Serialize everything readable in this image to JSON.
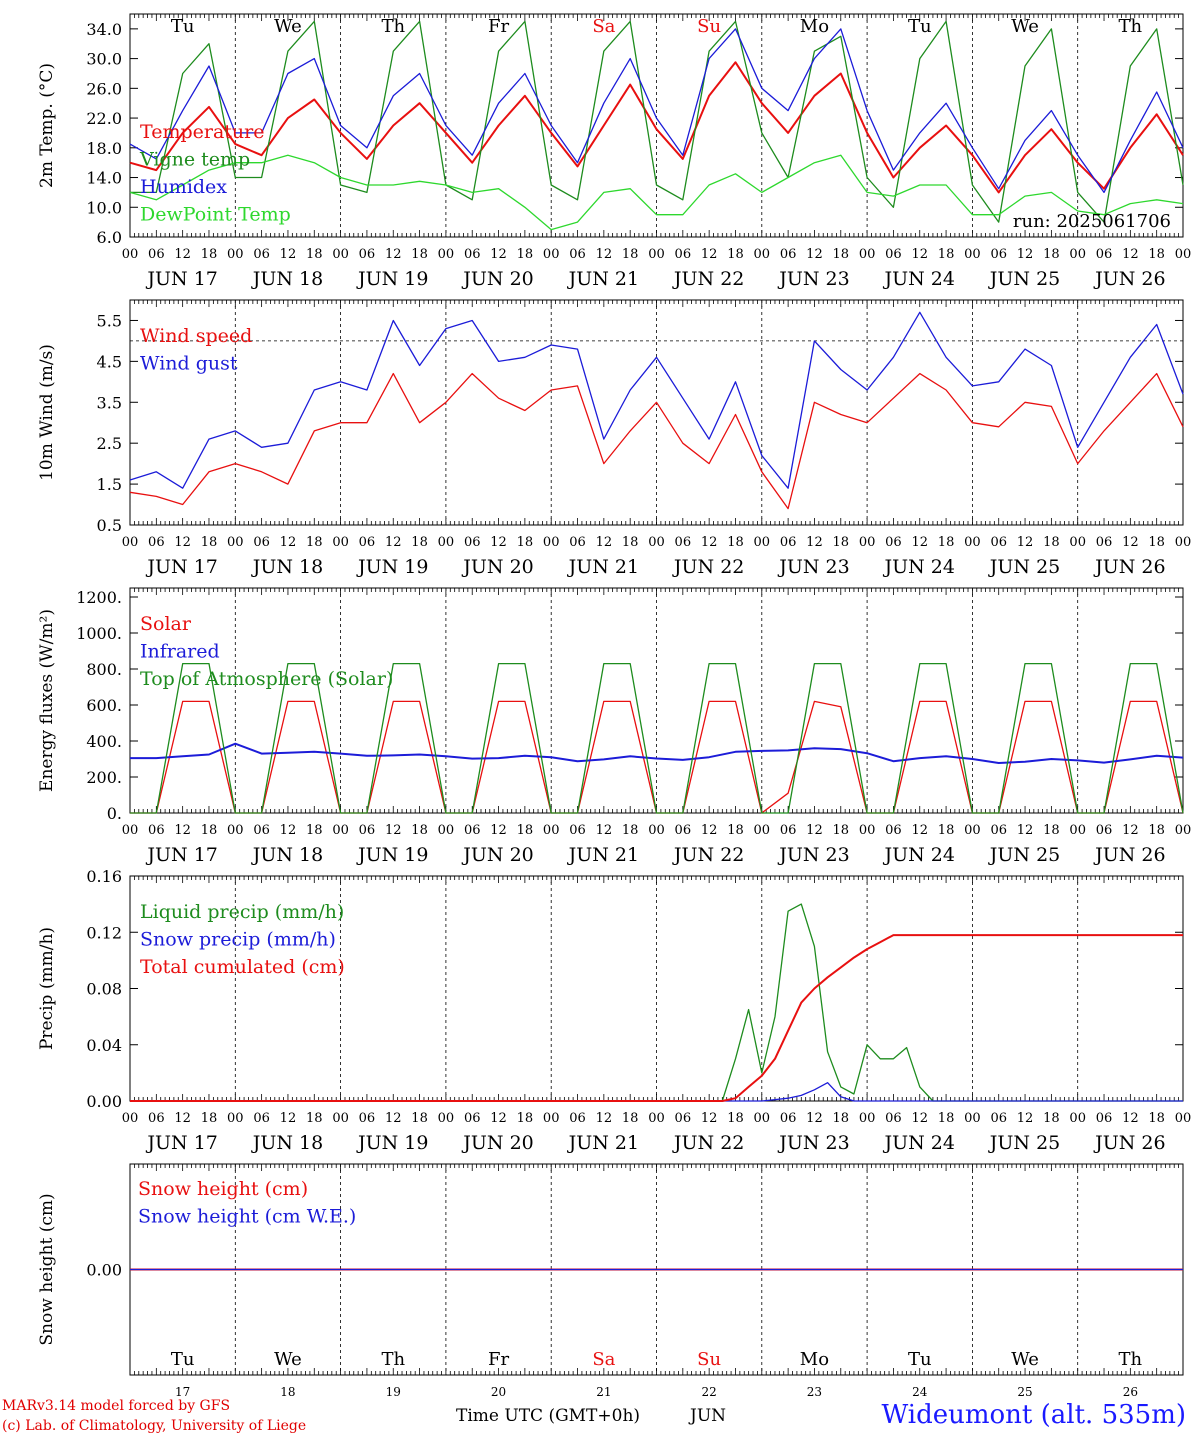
{
  "colors": {
    "temperature": "#e81010",
    "vigne": "#1e8c1e",
    "humidex": "#1c1cd8",
    "dewpoint": "#2ed82e",
    "weekend": "#e81010",
    "frame": "#000000"
  },
  "hour_labels": [
    "00",
    "06",
    "12",
    "18"
  ],
  "dates": [
    "JUN 17",
    "JUN 18",
    "JUN 19",
    "JUN 20",
    "JUN 21",
    "JUN 22",
    "JUN 23",
    "JUN 24",
    "JUN 25",
    "JUN 26"
  ],
  "days": [
    {
      "name": "Tu",
      "weekend": false,
      "num": "17"
    },
    {
      "name": "We",
      "weekend": false,
      "num": "18"
    },
    {
      "name": "Th",
      "weekend": false,
      "num": "19"
    },
    {
      "name": "Fr",
      "weekend": false,
      "num": "20"
    },
    {
      "name": "Sa",
      "weekend": true,
      "num": "21"
    },
    {
      "name": "Su",
      "weekend": true,
      "num": "22"
    },
    {
      "name": "Mo",
      "weekend": false,
      "num": "23"
    },
    {
      "name": "Tu",
      "weekend": false,
      "num": "24"
    },
    {
      "name": "We",
      "weekend": false,
      "num": "25"
    },
    {
      "name": "Th",
      "weekend": false,
      "num": "26"
    }
  ],
  "footer": {
    "credit_line1": "MARv3.14 model forced by GFS",
    "credit_line2": "(c) Lab. of Climatology, University of Liege",
    "x_title": "Time UTC (GMT+0h)",
    "x_month": "JUN",
    "station": "Wideumont (alt. 535m)"
  },
  "chart_data": [
    {
      "type": "line",
      "ylabel": "2m Temp. (°C)",
      "ylim": [
        6,
        36
      ],
      "yticks": [
        "34.0",
        "30.0",
        "26.0",
        "22.0",
        "18.0",
        "14.0",
        "10.0",
        "6.0"
      ],
      "ytick_values": [
        34,
        30,
        26,
        22,
        18,
        14,
        10,
        6
      ],
      "annotation": "run: 2025061706",
      "x_hours_step": 6,
      "series": [
        {
          "name": "Temperature",
          "color": "#e81010",
          "values": [
            16.0,
            15.0,
            20.0,
            23.5,
            18.5,
            17.0,
            22.0,
            24.5,
            20.0,
            16.5,
            21.0,
            24.0,
            20.0,
            16.0,
            21.0,
            25.0,
            20.0,
            15.5,
            21.0,
            26.5,
            20.5,
            16.5,
            25.0,
            29.5,
            24.0,
            20.0,
            25.0,
            28.0,
            20.0,
            14.0,
            18.0,
            21.0,
            17.0,
            12.0,
            17.0,
            20.5,
            16.0,
            12.5,
            18.0,
            22.5,
            17.0
          ]
        },
        {
          "name": "Vigne temp",
          "color": "#1e8c1e",
          "values": [
            12.0,
            12.0,
            28.0,
            32.0,
            14.0,
            14.0,
            31.0,
            35.0,
            13.0,
            12.0,
            31.0,
            35.0,
            13.0,
            11.0,
            31.0,
            35.0,
            13.0,
            11.0,
            31.0,
            35.0,
            13.0,
            11.0,
            31.0,
            35.0,
            20.0,
            14.0,
            31.0,
            33.0,
            14.0,
            10.0,
            30.0,
            35.0,
            13.0,
            8.0,
            29.0,
            34.0,
            12.0,
            8.0,
            29.0,
            34.0,
            13.0
          ]
        },
        {
          "name": "Humidex",
          "color": "#1c1cd8",
          "values": [
            18.5,
            16.5,
            23.0,
            29.0,
            20.0,
            20.0,
            28.0,
            30.0,
            21.0,
            18.0,
            25.0,
            28.0,
            21.0,
            17.0,
            24.0,
            28.0,
            21.0,
            16.0,
            24.0,
            30.0,
            22.0,
            17.0,
            30.0,
            34.0,
            26.0,
            23.0,
            30.0,
            34.0,
            23.0,
            15.0,
            20.0,
            24.0,
            18.0,
            12.5,
            19.0,
            23.0,
            17.0,
            12.0,
            19.0,
            25.5,
            18.0
          ]
        },
        {
          "name": "DewPoint Temp",
          "color": "#2ed82e",
          "values": [
            12.0,
            11.0,
            13.0,
            15.0,
            16.0,
            16.0,
            17.0,
            16.0,
            14.0,
            13.0,
            13.0,
            13.5,
            13.0,
            12.0,
            12.5,
            10.0,
            7.0,
            8.0,
            12.0,
            12.5,
            9.0,
            9.0,
            13.0,
            14.5,
            12.0,
            14.0,
            16.0,
            17.0,
            12.0,
            11.5,
            13.0,
            13.0,
            9.0,
            9.0,
            11.5,
            12.0,
            9.5,
            9.0,
            10.5,
            11.0,
            10.5
          ]
        }
      ]
    },
    {
      "type": "line",
      "ylabel": "10m Wind (m/s)",
      "ylim": [
        0.5,
        6.0
      ],
      "yticks": [
        "5.5",
        "4.5",
        "3.5",
        "2.5",
        "1.5",
        "0.5"
      ],
      "ytick_values": [
        5.5,
        4.5,
        3.5,
        2.5,
        1.5,
        0.5
      ],
      "reference_line": 5.0,
      "x_hours_step": 6,
      "series": [
        {
          "name": "Wind speed",
          "color": "#e81010",
          "values": [
            1.3,
            1.2,
            1.0,
            1.8,
            2.0,
            1.8,
            1.5,
            2.8,
            3.0,
            3.0,
            4.2,
            3.0,
            3.5,
            4.2,
            3.6,
            3.3,
            3.8,
            3.9,
            2.0,
            2.8,
            3.5,
            2.5,
            2.0,
            3.2,
            1.8,
            0.9,
            3.5,
            3.2,
            3.0,
            3.6,
            4.2,
            3.8,
            3.0,
            2.9,
            3.5,
            3.4,
            2.0,
            2.8,
            3.5,
            4.2,
            2.9
          ]
        },
        {
          "name": "Wind gust",
          "color": "#1c1cd8",
          "values": [
            1.6,
            1.8,
            1.4,
            2.6,
            2.8,
            2.4,
            2.5,
            3.8,
            4.0,
            3.8,
            5.5,
            4.4,
            5.3,
            5.5,
            4.5,
            4.6,
            4.9,
            4.8,
            2.6,
            3.8,
            4.6,
            3.6,
            2.6,
            4.0,
            2.2,
            1.4,
            5.0,
            4.3,
            3.8,
            4.6,
            5.7,
            4.6,
            3.9,
            4.0,
            4.8,
            4.4,
            2.4,
            3.5,
            4.6,
            5.4,
            3.7
          ]
        }
      ]
    },
    {
      "type": "line",
      "ylabel": "Energy fluxes (W/m²)",
      "ylim": [
        0,
        1250
      ],
      "yticks": [
        "1200.",
        "1000.",
        "800.",
        "600.",
        "400.",
        "200.",
        "0."
      ],
      "ytick_values": [
        1200,
        1000,
        800,
        600,
        400,
        200,
        0
      ],
      "x_hours_step": 6,
      "series": [
        {
          "name": "Solar",
          "color": "#e81010",
          "values": [
            0,
            0,
            620,
            620,
            0,
            0,
            620,
            620,
            0,
            0,
            620,
            620,
            0,
            0,
            620,
            620,
            0,
            0,
            620,
            620,
            0,
            0,
            620,
            620,
            0,
            110,
            620,
            590,
            0,
            0,
            620,
            620,
            0,
            0,
            620,
            620,
            0,
            0,
            620,
            620,
            0
          ]
        },
        {
          "name": "Infrared",
          "color": "#1c1cd8",
          "values": [
            305,
            305,
            315,
            325,
            385,
            330,
            335,
            340,
            330,
            318,
            320,
            325,
            315,
            302,
            305,
            318,
            310,
            288,
            298,
            315,
            303,
            295,
            310,
            340,
            345,
            348,
            360,
            355,
            332,
            288,
            305,
            315,
            300,
            278,
            285,
            300,
            292,
            280,
            298,
            318,
            308
          ]
        },
        {
          "name": "Top of Atmosphere (Solar)",
          "color": "#1e8c1e",
          "values": [
            0,
            0,
            830,
            830,
            0,
            0,
            830,
            830,
            0,
            0,
            830,
            830,
            0,
            0,
            830,
            830,
            0,
            0,
            830,
            830,
            0,
            0,
            830,
            830,
            0,
            0,
            830,
            830,
            0,
            0,
            830,
            830,
            0,
            0,
            830,
            830,
            0,
            0,
            830,
            830,
            0
          ]
        }
      ]
    },
    {
      "type": "line",
      "ylabel": "Precip (mm/h)",
      "ylim": [
        0,
        0.16
      ],
      "yticks": [
        "0.16",
        "0.12",
        "0.08",
        "0.04",
        "0.00"
      ],
      "ytick_values": [
        0.16,
        0.12,
        0.08,
        0.04,
        0.0
      ],
      "x_hours_step": 3,
      "series": [
        {
          "name": "Liquid precip (mm/h)",
          "color": "#1e8c1e",
          "values": [
            0,
            0,
            0,
            0,
            0,
            0,
            0,
            0,
            0,
            0,
            0,
            0,
            0,
            0,
            0,
            0,
            0,
            0,
            0,
            0,
            0,
            0,
            0,
            0,
            0,
            0,
            0,
            0,
            0,
            0,
            0,
            0,
            0,
            0,
            0,
            0,
            0,
            0,
            0,
            0,
            0,
            0,
            0,
            0,
            0,
            0,
            0.03,
            0.065,
            0.02,
            0.06,
            0.135,
            0.14,
            0.11,
            0.035,
            0.01,
            0.005,
            0.04,
            0.03,
            0.03,
            0.038,
            0.01,
            0,
            0,
            0,
            0,
            0,
            0,
            0,
            0,
            0,
            0,
            0,
            0,
            0,
            0,
            0,
            0,
            0,
            0,
            0,
            0
          ]
        },
        {
          "name": "Snow precip (mm/h)",
          "color": "#1c1cd8",
          "values": [
            0,
            0,
            0,
            0,
            0,
            0,
            0,
            0,
            0,
            0,
            0,
            0,
            0,
            0,
            0,
            0,
            0,
            0,
            0,
            0,
            0,
            0,
            0,
            0,
            0,
            0,
            0,
            0,
            0,
            0,
            0,
            0,
            0,
            0,
            0,
            0,
            0,
            0,
            0,
            0,
            0,
            0,
            0,
            0,
            0,
            0,
            0,
            0,
            0,
            0.001,
            0.002,
            0.004,
            0.008,
            0.013,
            0.003,
            0,
            0,
            0,
            0,
            0,
            0,
            0,
            0,
            0,
            0,
            0,
            0,
            0,
            0,
            0,
            0,
            0,
            0,
            0,
            0,
            0,
            0,
            0,
            0,
            0,
            0
          ]
        },
        {
          "name": "Total cumulated (cm)",
          "color": "#e81010",
          "values": [
            0,
            0,
            0,
            0,
            0,
            0,
            0,
            0,
            0,
            0,
            0,
            0,
            0,
            0,
            0,
            0,
            0,
            0,
            0,
            0,
            0,
            0,
            0,
            0,
            0,
            0,
            0,
            0,
            0,
            0,
            0,
            0,
            0,
            0,
            0,
            0,
            0,
            0,
            0,
            0,
            0,
            0,
            0,
            0,
            0,
            0,
            0.002,
            0.01,
            0.018,
            0.03,
            0.05,
            0.07,
            0.08,
            0.088,
            0.095,
            0.102,
            0.108,
            0.113,
            0.118,
            0.118,
            0.118,
            0.118,
            0.118,
            0.118,
            0.118,
            0.118,
            0.118,
            0.118,
            0.118,
            0.118,
            0.118,
            0.118,
            0.118,
            0.118,
            0.118,
            0.118,
            0.118,
            0.118,
            0.118,
            0.118,
            0.118
          ]
        }
      ]
    },
    {
      "type": "line",
      "ylabel": "Snow height (cm)",
      "ylim": [
        -1,
        1
      ],
      "yticks": [
        "0.00"
      ],
      "ytick_values": [
        0.0
      ],
      "x_hours_step": 6,
      "series": [
        {
          "name": "Snow height (cm)",
          "color": "#e81010",
          "values": [
            0.0,
            0.0,
            0.0,
            0.0,
            0.0,
            0.0,
            0.0,
            0.0,
            0.0,
            0.0,
            0.0,
            0.0,
            0.0,
            0.0,
            0.0,
            0.0,
            0.0,
            0.0,
            0.0,
            0.0,
            0.0,
            0.0,
            0.0,
            0.0,
            0.0,
            0.0,
            0.0,
            0.0,
            0.0,
            0.0,
            0.0,
            0.0,
            0.0,
            0.0,
            0.0,
            0.0,
            0.0,
            0.0,
            0.0,
            0.0,
            0.0
          ]
        },
        {
          "name": "Snow height (cm W.E.)",
          "color": "#1c1cd8",
          "values": [
            0.0,
            0.0,
            0.0,
            0.0,
            0.0,
            0.0,
            0.0,
            0.0,
            0.0,
            0.0,
            0.0,
            0.0,
            0.0,
            0.0,
            0.0,
            0.0,
            0.0,
            0.0,
            0.0,
            0.0,
            0.0,
            0.0,
            0.0,
            0.0,
            0.0,
            0.0,
            0.0,
            0.0,
            0.0,
            0.0,
            0.0,
            0.0,
            0.0,
            0.0,
            0.0,
            0.0,
            0.0,
            0.0,
            0.0,
            0.0,
            0.0
          ]
        }
      ]
    }
  ]
}
